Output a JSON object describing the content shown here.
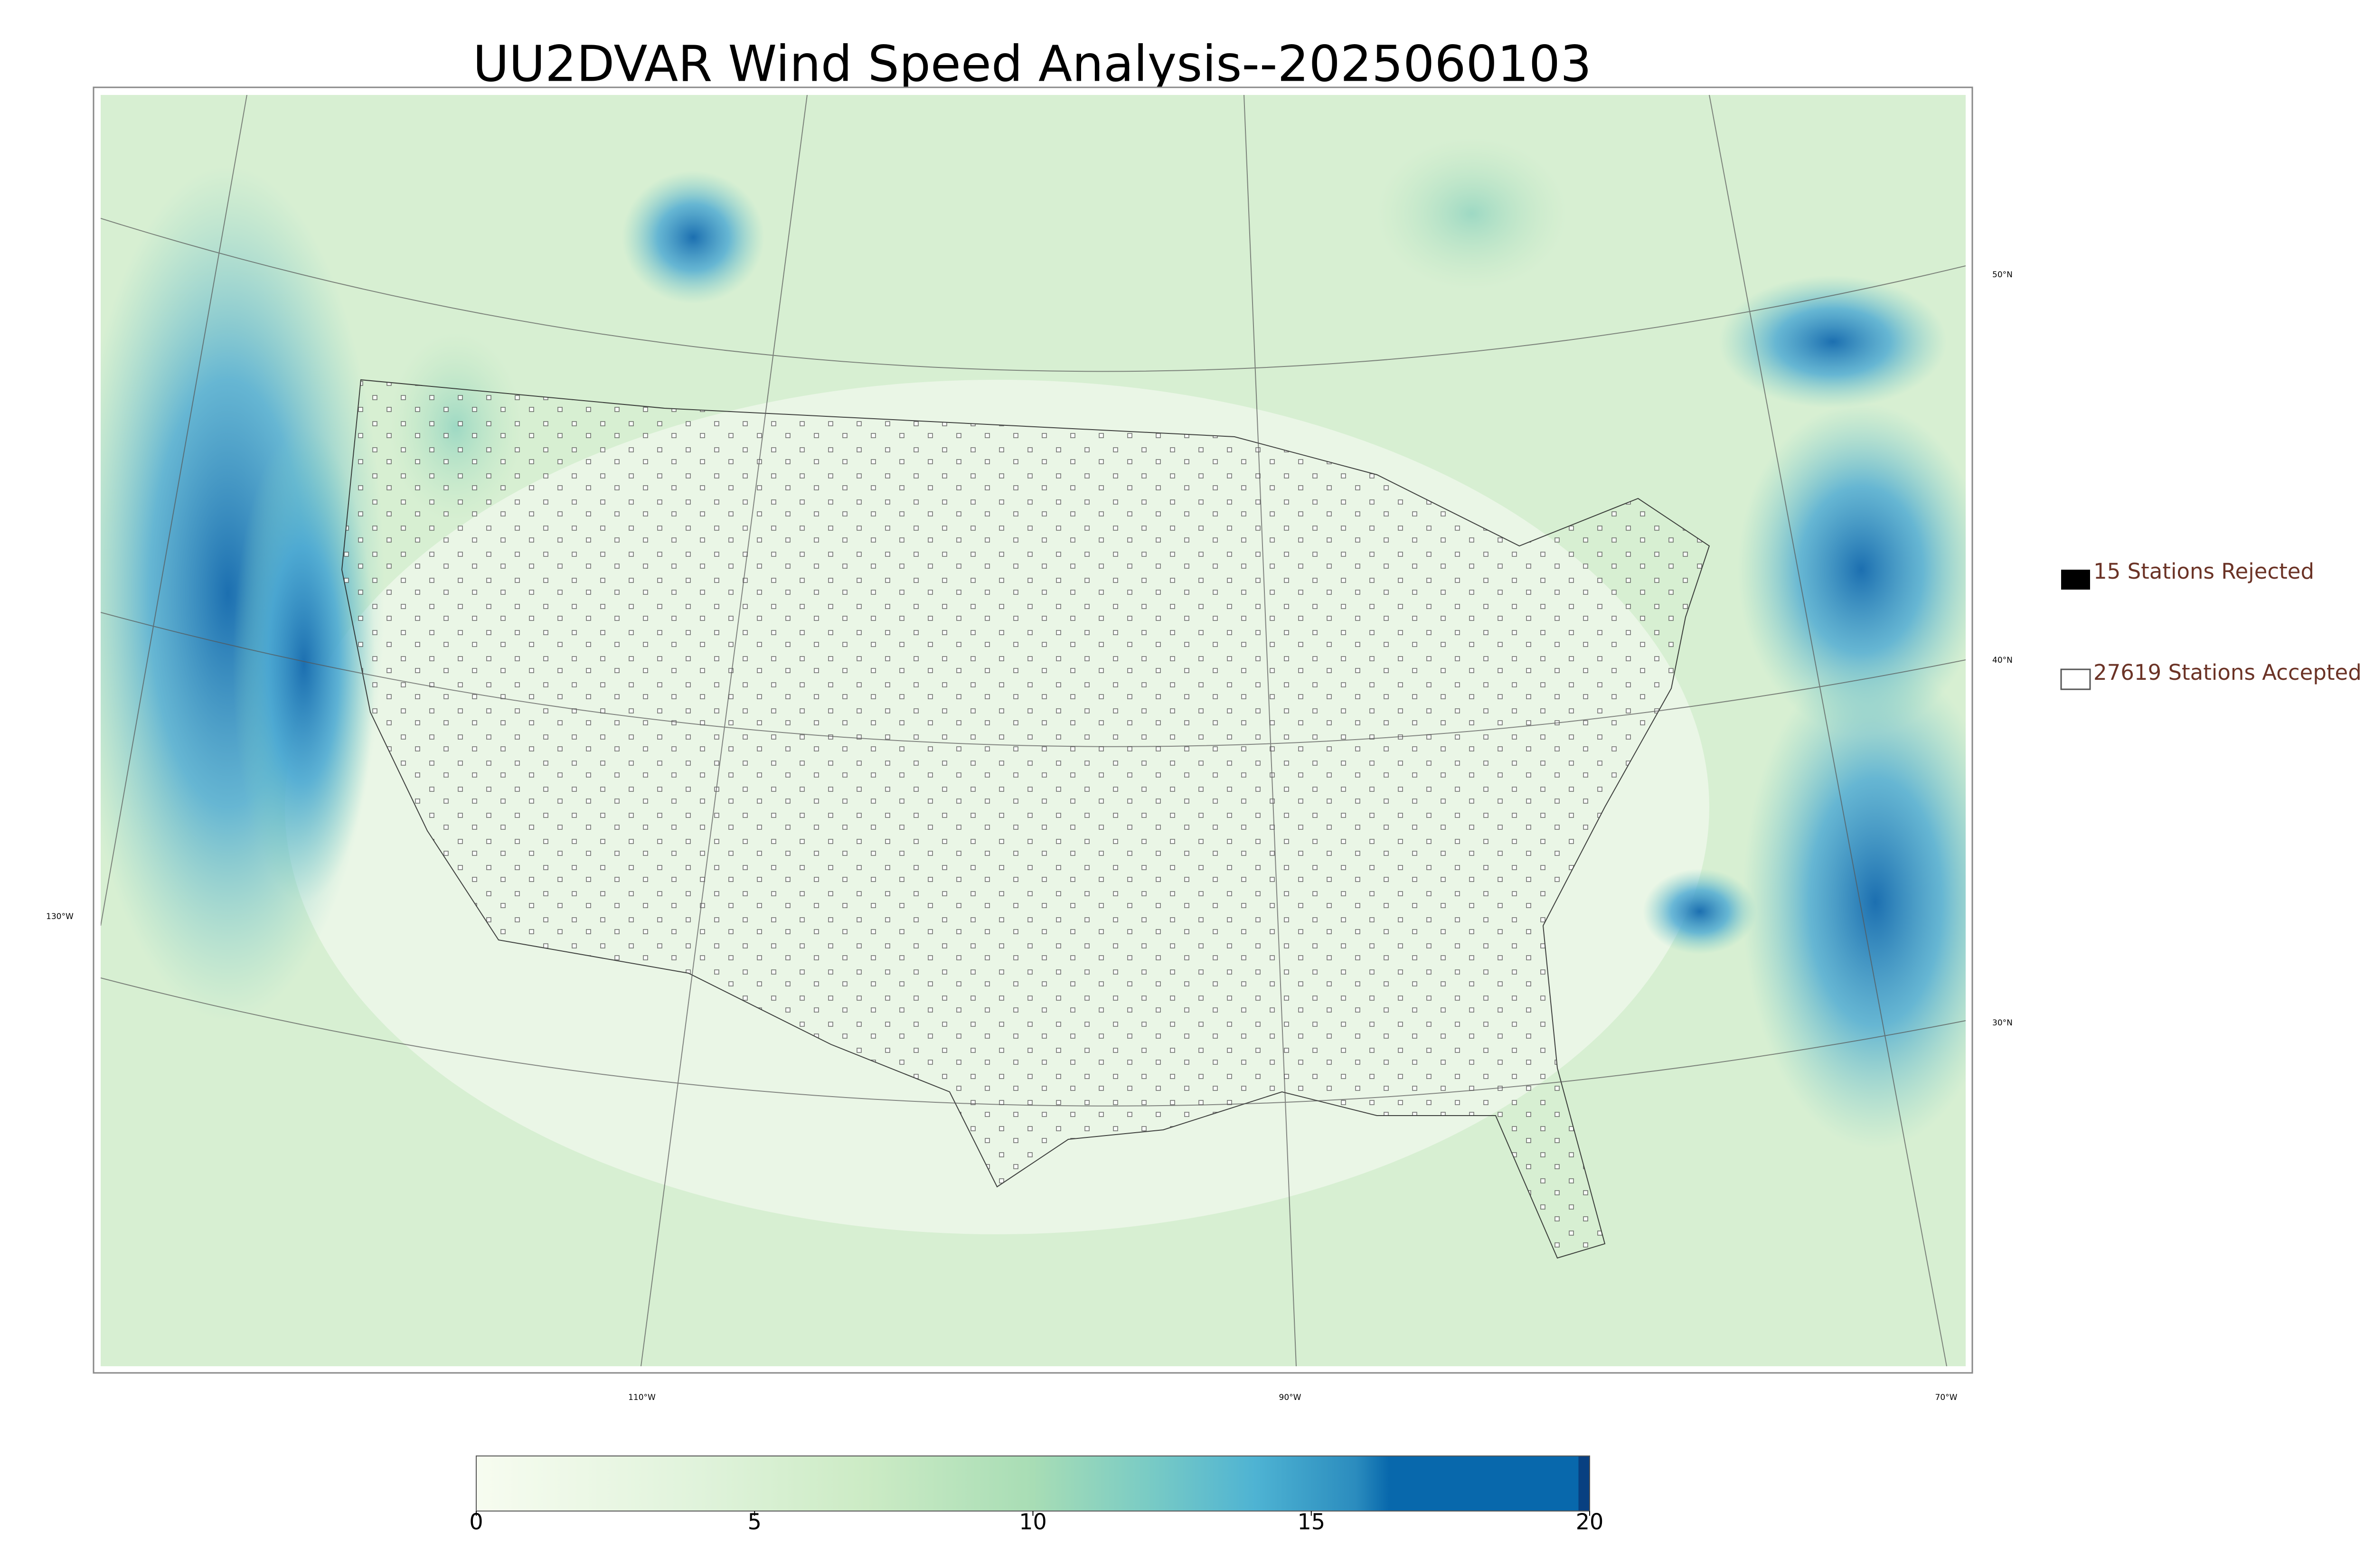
{
  "title": "UU2DVAR Wind Speed Analysis--2025060103",
  "latitude_labels": [
    "50°N",
    "40°N",
    "30°N",
    "130°W"
  ],
  "longitude_labels": [
    "110°W",
    "90°W",
    "70°W"
  ],
  "legend": [
    "15 Stations Rejected",
    "27619 Stations Accepted"
  ],
  "colorbar": {
    "lim": [
      0,
      20
    ],
    "ticks": [
      0,
      5,
      10,
      15,
      20
    ]
  }
}
